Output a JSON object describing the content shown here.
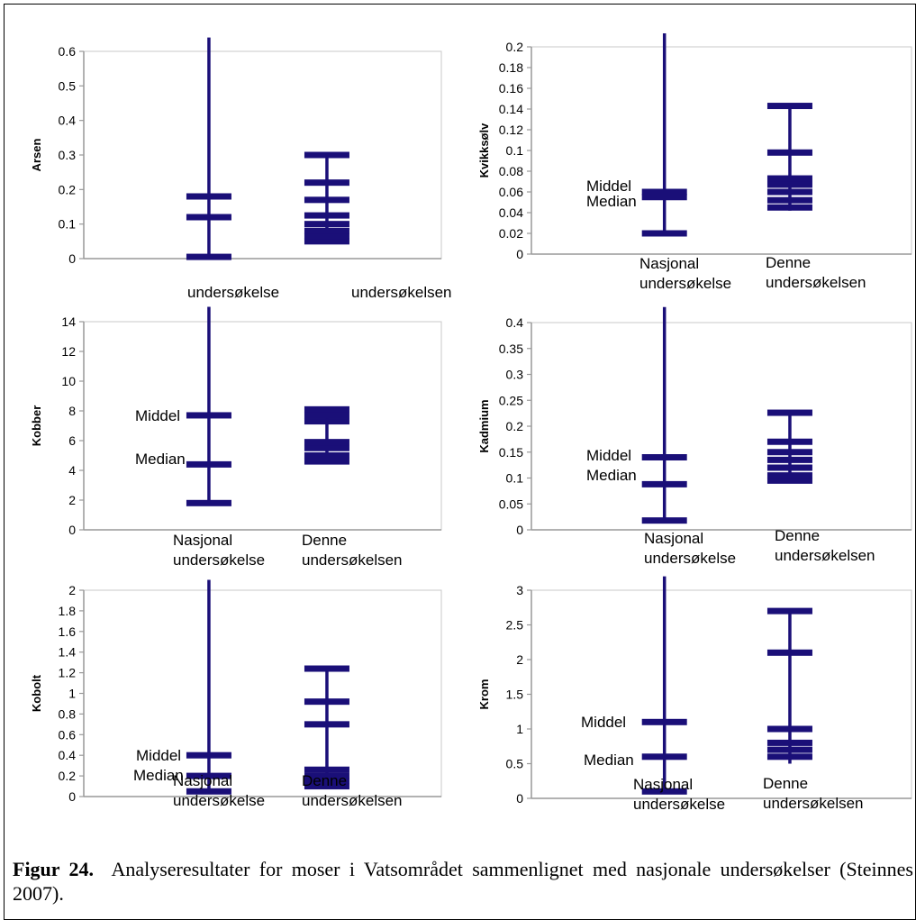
{
  "caption": {
    "label": "Figur 24.",
    "text": "Analyseresultater for moser i Vatsområdet sammenlignet med nasjonale undersøkelser (Steinnes 2007)."
  },
  "colors": {
    "mark": "#1a0f78",
    "axis": "#999999",
    "text": "#000000"
  },
  "chart_data": [
    {
      "type": "range-markers",
      "ylabel": "Arsen",
      "ylim": [
        0,
        0.6
      ],
      "yticks": [
        "0",
        "0.1",
        "0.2",
        "0.3",
        "0.4",
        "0.5",
        "0.6"
      ],
      "categories": [
        "undersøkelse",
        "undersøkelsen"
      ],
      "annotations": [],
      "series": [
        {
          "range": [
            0.005,
            0.64
          ],
          "markers": [
            0.005,
            0.12,
            0.18
          ]
        },
        {
          "range": [
            0.05,
            0.3
          ],
          "markers": [
            0.05,
            0.065,
            0.08,
            0.1,
            0.125,
            0.17,
            0.22,
            0.3
          ]
        }
      ]
    },
    {
      "type": "range-markers",
      "ylabel": "Kvikksølv",
      "ylim": [
        0,
        0.2
      ],
      "yticks": [
        "0",
        "0.02",
        "0.04",
        "0.06",
        "0.08",
        "0.1",
        "0.12",
        "0.14",
        "0.16",
        "0.18",
        "0.2"
      ],
      "categories": [
        "Nasjonal\nundersøkelse",
        "Denne\nundersøkelsen"
      ],
      "annotations": [
        "Middel",
        "Median"
      ],
      "series": [
        {
          "range": [
            0.02,
            0.213
          ],
          "markers": [
            0.02,
            0.055,
            0.06
          ]
        },
        {
          "range": [
            0.042,
            0.143
          ],
          "markers": [
            0.045,
            0.052,
            0.06,
            0.067,
            0.073,
            0.098,
            0.143
          ]
        }
      ]
    },
    {
      "type": "range-markers",
      "ylabel": "Kobber",
      "ylim": [
        0,
        14
      ],
      "yticks": [
        "0",
        "2",
        "4",
        "6",
        "8",
        "10",
        "12",
        "14"
      ],
      "categories": [
        "Nasjonal\nundersøkelse",
        "Denne\nundersøkelsen"
      ],
      "annotations": [
        "Middel",
        "Median"
      ],
      "series": [
        {
          "range": [
            1.8,
            15
          ],
          "markers": [
            1.8,
            4.4,
            7.7
          ]
        },
        {
          "range": [
            4.4,
            8.2
          ],
          "markers": [
            4.6,
            5.0,
            5.5,
            5.9,
            7.3,
            7.7,
            8.1
          ]
        }
      ]
    },
    {
      "type": "range-markers",
      "ylabel": "Kadmium",
      "ylim": [
        0,
        0.4
      ],
      "yticks": [
        "0",
        "0.05",
        "0.1",
        "0.15",
        "0.2",
        "0.25",
        "0.3",
        "0.35",
        "0.4"
      ],
      "categories": [
        "Nasjonal\nundersøkelse",
        "Denne\nundersøkelsen"
      ],
      "annotations": [
        "Middel",
        "Median"
      ],
      "series": [
        {
          "range": [
            0.018,
            0.43
          ],
          "markers": [
            0.018,
            0.088,
            0.14
          ]
        },
        {
          "range": [
            0.09,
            0.228
          ],
          "markers": [
            0.095,
            0.105,
            0.12,
            0.135,
            0.15,
            0.17,
            0.226
          ]
        }
      ]
    },
    {
      "type": "range-markers",
      "ylabel": "Kobolt",
      "ylim": [
        0,
        2
      ],
      "yticks": [
        "0",
        "0.2",
        "0.4",
        "0.6",
        "0.8",
        "1",
        "1.2",
        "1.4",
        "1.6",
        "1.8",
        "2"
      ],
      "categories": [
        "Nasjonal\nundersøkelse",
        "Denne\nundersøkelsen"
      ],
      "annotations": [
        "Middel",
        "Median"
      ],
      "series": [
        {
          "range": [
            0.05,
            2.1
          ],
          "markers": [
            0.05,
            0.2,
            0.4
          ]
        },
        {
          "range": [
            0.08,
            1.24
          ],
          "markers": [
            0.1,
            0.15,
            0.2,
            0.26,
            0.7,
            0.92,
            1.24
          ]
        }
      ]
    },
    {
      "type": "range-markers",
      "ylabel": "Krom",
      "ylim": [
        0,
        3
      ],
      "yticks": [
        "0",
        "0.5",
        "1",
        "1.5",
        "2",
        "2.5",
        "3"
      ],
      "categories": [
        "Nasjonal\nundersøkelse",
        "Denne\nundersøkelsen"
      ],
      "annotations": [
        "Middel",
        "Median"
      ],
      "series": [
        {
          "range": [
            0.1,
            3.2
          ],
          "markers": [
            0.1,
            0.6,
            1.1
          ]
        },
        {
          "range": [
            0.5,
            2.7
          ],
          "markers": [
            0.6,
            0.7,
            0.8,
            1.0,
            2.1,
            2.7
          ]
        }
      ]
    }
  ]
}
